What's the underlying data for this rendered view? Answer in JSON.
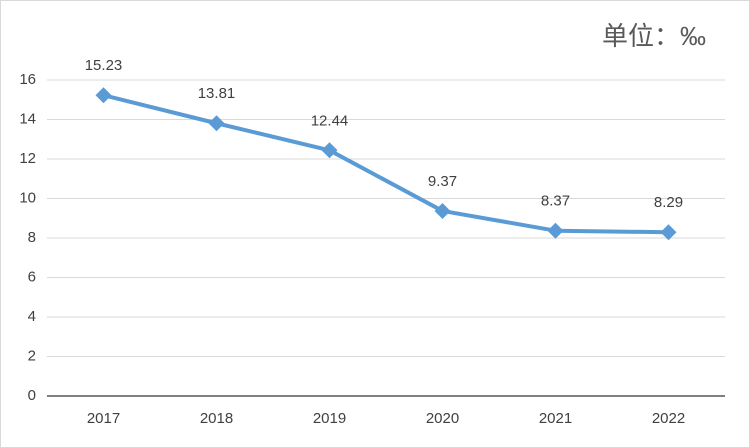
{
  "chart_data": {
    "type": "line",
    "annotation": "单位：‰",
    "categories": [
      "2017",
      "2018",
      "2019",
      "2020",
      "2021",
      "2022"
    ],
    "values": [
      15.23,
      13.81,
      12.44,
      9.37,
      8.37,
      8.29
    ],
    "color": "#5b9bd5",
    "ylim": [
      0,
      16
    ],
    "yticks": [
      0,
      2,
      4,
      6,
      8,
      10,
      12,
      14,
      16
    ],
    "grid": true
  }
}
